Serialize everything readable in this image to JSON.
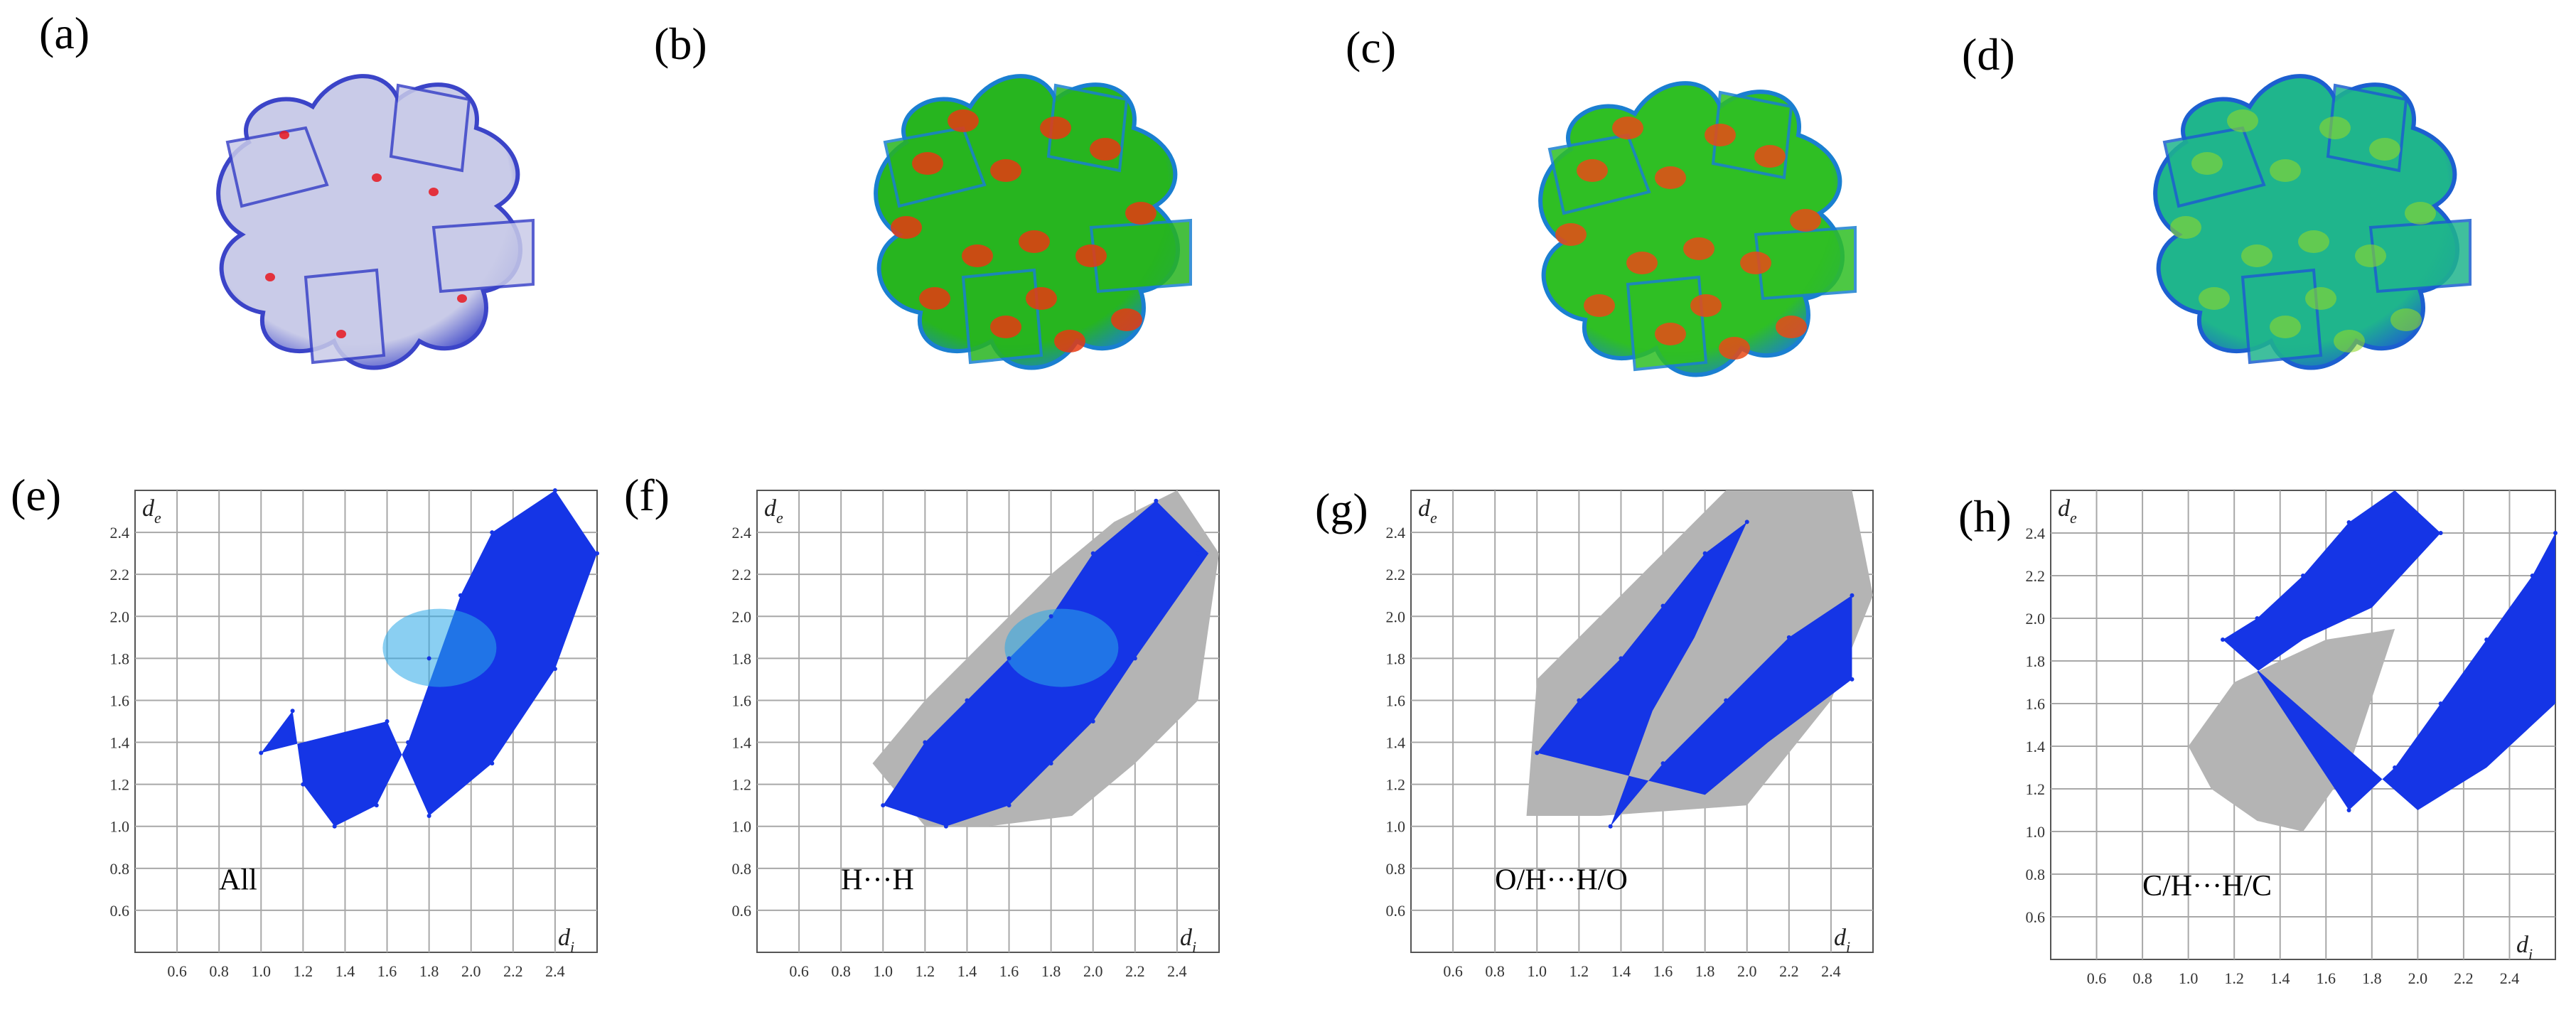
{
  "panels": {
    "a": {
      "label": "(a)"
    },
    "b": {
      "label": "(b)"
    },
    "c": {
      "label": "(c)"
    },
    "d": {
      "label": "(d)"
    },
    "e": {
      "label": "(e)",
      "contact": "All"
    },
    "f": {
      "label": "(f)",
      "contact": "H···H"
    },
    "g": {
      "label": "(g)",
      "contact": "O/H···H/O"
    },
    "h": {
      "label": "(h)",
      "contact": "C/H···H/C"
    }
  },
  "surfaces": {
    "a": {
      "map": "dnorm",
      "base": "#c9cbe8",
      "edge": "#3b44c8",
      "spot": "#e8171e"
    },
    "b": {
      "map": "shape-index",
      "base": "#27b51f",
      "edge": "#1a7fd1",
      "spot": "#e63a12"
    },
    "c": {
      "map": "shape-index",
      "base": "#2fbf24",
      "edge": "#1a7fd1",
      "spot": "#e84a16"
    },
    "d": {
      "map": "curvedness",
      "base": "#1fb58c",
      "edge": "#1c5fd0",
      "spot": "#8fd82a"
    }
  },
  "axis": {
    "xlabel": "d",
    "xlabel_sub": "i",
    "ylabel": "d",
    "ylabel_sub": "e",
    "xticks": [
      "0.6",
      "0.8",
      "1.0",
      "1.2",
      "1.4",
      "1.6",
      "1.8",
      "2.0",
      "2.2",
      "2.4"
    ],
    "yticks": [
      "0.6",
      "0.8",
      "1.0",
      "1.2",
      "1.4",
      "1.6",
      "1.8",
      "2.0",
      "2.2",
      "2.4"
    ]
  },
  "colors": {
    "points": "#1535e6",
    "points_dense": "#2aa8e8",
    "grey": "#b4b4b4",
    "grid": "#a8a8a8"
  },
  "chart_data": [
    {
      "type": "scatter",
      "panel": "e",
      "title": "",
      "xlabel": "d_i",
      "ylabel": "d_e",
      "xlim": [
        0.4,
        2.6
      ],
      "ylim": [
        0.4,
        2.6
      ],
      "grid": true,
      "annotation": "All",
      "series": [
        {
          "name": "",
          "points": [
            [
              1.0,
              1.35
            ],
            [
              1.15,
              1.55
            ],
            [
              1.2,
              1.2
            ],
            [
              1.35,
              1.0
            ],
            [
              1.55,
              1.1
            ],
            [
              1.7,
              1.4
            ],
            [
              1.8,
              1.8
            ],
            [
              1.95,
              2.1
            ],
            [
              2.1,
              2.4
            ],
            [
              2.4,
              2.6
            ],
            [
              2.6,
              2.3
            ],
            [
              2.4,
              1.75
            ],
            [
              2.1,
              1.3
            ],
            [
              1.8,
              1.05
            ],
            [
              1.6,
              1.5
            ]
          ]
        }
      ]
    },
    {
      "type": "scatter",
      "panel": "f",
      "title": "",
      "xlabel": "d_i",
      "ylabel": "d_e",
      "xlim": [
        0.4,
        2.6
      ],
      "ylim": [
        0.4,
        2.6
      ],
      "grid": true,
      "annotation": "H···H",
      "series": [
        {
          "name": "",
          "points": [
            [
              1.0,
              1.1
            ],
            [
              1.2,
              1.4
            ],
            [
              1.4,
              1.6
            ],
            [
              1.6,
              1.8
            ],
            [
              1.8,
              2.0
            ],
            [
              2.0,
              2.3
            ],
            [
              2.3,
              2.55
            ],
            [
              2.5,
              2.3
            ],
            [
              2.2,
              1.8
            ],
            [
              2.0,
              1.5
            ],
            [
              1.8,
              1.3
            ],
            [
              1.6,
              1.1
            ],
            [
              1.3,
              1.0
            ]
          ]
        }
      ]
    },
    {
      "type": "scatter",
      "panel": "g",
      "title": "",
      "xlabel": "d_i",
      "ylabel": "d_e",
      "xlim": [
        0.4,
        2.6
      ],
      "ylim": [
        0.4,
        2.6
      ],
      "grid": true,
      "annotation": "O/H···H/O",
      "series": [
        {
          "name": "",
          "points": [
            [
              1.0,
              1.35
            ],
            [
              1.2,
              1.6
            ],
            [
              1.4,
              1.8
            ],
            [
              1.6,
              2.05
            ],
            [
              1.8,
              2.3
            ],
            [
              2.0,
              2.45
            ],
            [
              1.35,
              1.0
            ],
            [
              1.6,
              1.3
            ],
            [
              1.9,
              1.6
            ],
            [
              2.2,
              1.9
            ],
            [
              2.5,
              2.1
            ],
            [
              2.5,
              1.7
            ]
          ]
        }
      ]
    },
    {
      "type": "scatter",
      "panel": "h",
      "title": "",
      "xlabel": "d_i",
      "ylabel": "d_e",
      "xlim": [
        0.4,
        2.6
      ],
      "ylim": [
        0.4,
        2.6
      ],
      "grid": true,
      "annotation": "C/H···H/C",
      "series": [
        {
          "name": "",
          "points": [
            [
              1.15,
              1.9
            ],
            [
              1.3,
              2.0
            ],
            [
              1.5,
              2.2
            ],
            [
              1.7,
              2.45
            ],
            [
              1.9,
              2.55
            ],
            [
              2.1,
              2.4
            ],
            [
              1.7,
              1.1
            ],
            [
              1.9,
              1.3
            ],
            [
              2.1,
              1.6
            ],
            [
              2.3,
              1.9
            ],
            [
              2.5,
              2.2
            ],
            [
              2.6,
              2.4
            ]
          ]
        }
      ]
    }
  ]
}
